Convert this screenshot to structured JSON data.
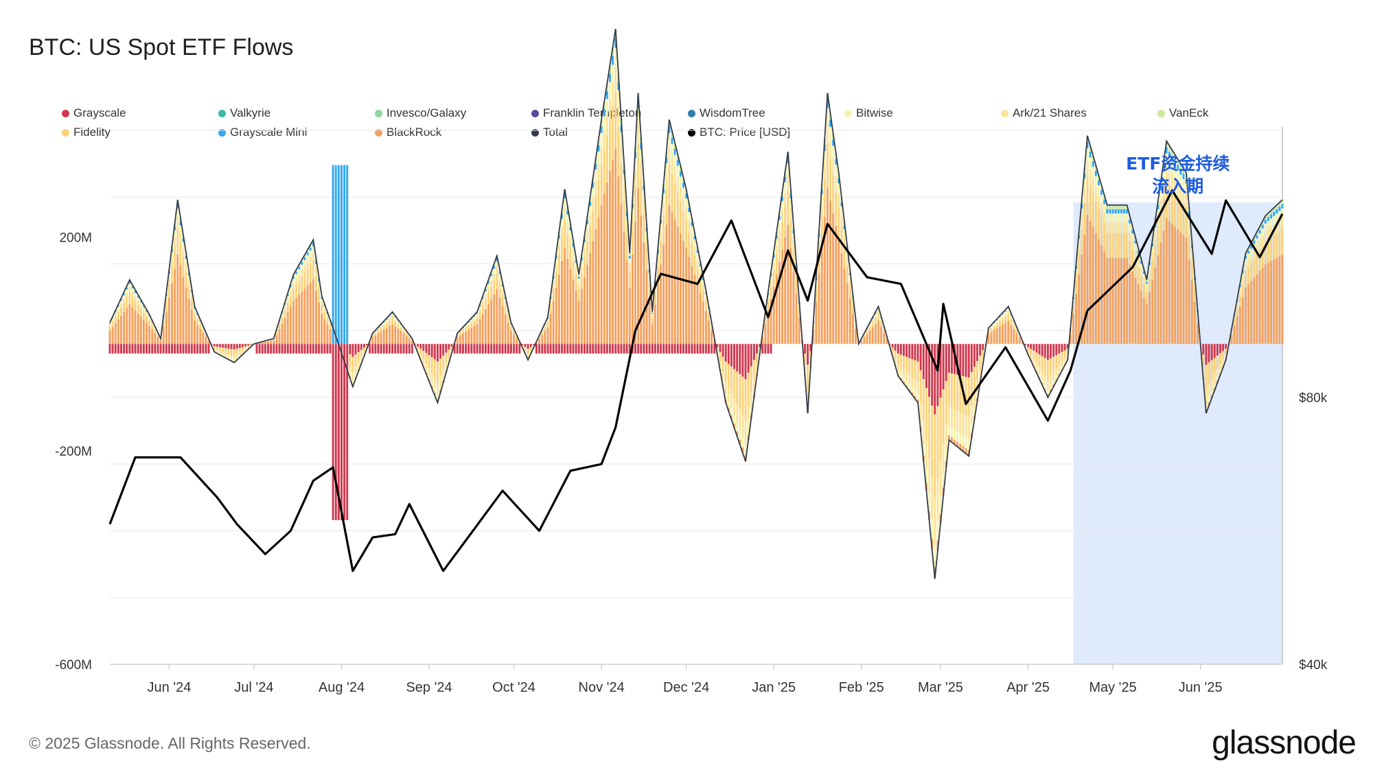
{
  "title": "BTC: US Spot ETF Flows",
  "footer": "© 2025 Glassnode. All Rights Reserved.",
  "brand": "glassnode",
  "legend": [
    {
      "name": "Grayscale",
      "color": "#d0384e"
    },
    {
      "name": "Valkyrie",
      "color": "#3fb8a6"
    },
    {
      "name": "Invesco/Galaxy",
      "color": "#8fd6a0"
    },
    {
      "name": "Franklin Templeton",
      "color": "#5b4a9e"
    },
    {
      "name": "WisdomTree",
      "color": "#2f7fb0"
    },
    {
      "name": "Bitwise",
      "color": "#f4f5b0"
    },
    {
      "name": "Ark/21 Shares",
      "color": "#fbe39a"
    },
    {
      "name": "VanEck",
      "color": "#c9e89a"
    },
    {
      "name": "Fidelity",
      "color": "#fbd27a"
    },
    {
      "name": "Grayscale Mini",
      "color": "#33a8f0"
    },
    {
      "name": "BlackRock",
      "color": "#f4a05c"
    },
    {
      "name": "Total",
      "color": "#333a48"
    },
    {
      "name": "BTC: Price [USD]",
      "color": "#000000"
    }
  ],
  "annotation": {
    "line1": "ETF资金持续",
    "line2": "流入期",
    "color": "#1f5de0",
    "band_color": "#dfeafd"
  },
  "chart_data": {
    "type": "bar",
    "xlabels": [
      "Jun '24",
      "Jul '24",
      "Aug '24",
      "Sep '24",
      "Oct '24",
      "Nov '24",
      "Dec '24",
      "Jan '25",
      "Feb '25",
      "Mar '25",
      "Apr '25",
      "May '25",
      "Jun '25"
    ],
    "x_range": [
      "2024-05-11",
      "2025-06-30"
    ],
    "highlight_range": [
      "2025-04-17",
      "2025-06-30"
    ],
    "y_left": {
      "range": [
        -600,
        400
      ],
      "unit": "M",
      "ticks": [
        {
          "value": 200,
          "label": "200M"
        },
        {
          "value": -200,
          "label": "-200M"
        },
        {
          "value": -600,
          "label": "-600M"
        }
      ]
    },
    "y_right": {
      "range": [
        40000,
        120000
      ],
      "ticks": [
        {
          "value": 80000,
          "label": "$80k"
        },
        {
          "value": 40000,
          "label": "$40k"
        }
      ]
    },
    "flow_series": [
      "Grayscale",
      "Valkyrie",
      "Invesco/Galaxy",
      "Franklin Templeton",
      "WisdomTree",
      "Bitwise",
      "Ark/21 Shares",
      "VanEck",
      "Fidelity",
      "Grayscale Mini",
      "BlackRock"
    ],
    "total_flow": [
      {
        "date": "2024-05-11",
        "value": 40
      },
      {
        "date": "2024-05-18",
        "value": 120
      },
      {
        "date": "2024-05-25",
        "value": 55
      },
      {
        "date": "2024-05-29",
        "value": 10
      },
      {
        "date": "2024-06-04",
        "value": 270
      },
      {
        "date": "2024-06-10",
        "value": 70
      },
      {
        "date": "2024-06-17",
        "value": -15
      },
      {
        "date": "2024-06-24",
        "value": -35
      },
      {
        "date": "2024-07-01",
        "value": 0
      },
      {
        "date": "2024-07-08",
        "value": 10
      },
      {
        "date": "2024-07-15",
        "value": 130
      },
      {
        "date": "2024-07-22",
        "value": 195
      },
      {
        "date": "2024-07-25",
        "value": 90
      },
      {
        "date": "2024-07-29",
        "value": 30
      },
      {
        "date": "2024-08-05",
        "value": -80
      },
      {
        "date": "2024-08-12",
        "value": 20
      },
      {
        "date": "2024-08-19",
        "value": 60
      },
      {
        "date": "2024-08-26",
        "value": 10
      },
      {
        "date": "2024-09-04",
        "value": -110
      },
      {
        "date": "2024-09-11",
        "value": 20
      },
      {
        "date": "2024-09-18",
        "value": 60
      },
      {
        "date": "2024-09-25",
        "value": 165
      },
      {
        "date": "2024-09-30",
        "value": 40
      },
      {
        "date": "2024-10-06",
        "value": -30
      },
      {
        "date": "2024-10-13",
        "value": 50
      },
      {
        "date": "2024-10-19",
        "value": 290
      },
      {
        "date": "2024-10-24",
        "value": 130
      },
      {
        "date": "2024-11-01",
        "value": 420
      },
      {
        "date": "2024-11-06",
        "value": 590
      },
      {
        "date": "2024-11-11",
        "value": 170
      },
      {
        "date": "2024-11-14",
        "value": 470
      },
      {
        "date": "2024-11-19",
        "value": 60
      },
      {
        "date": "2024-11-25",
        "value": 420
      },
      {
        "date": "2024-12-01",
        "value": 290
      },
      {
        "date": "2024-12-08",
        "value": 100
      },
      {
        "date": "2024-12-15",
        "value": -110
      },
      {
        "date": "2024-12-22",
        "value": -220
      },
      {
        "date": "2024-12-29",
        "value": 60
      },
      {
        "date": "2025-01-06",
        "value": 360
      },
      {
        "date": "2025-01-13",
        "value": -130
      },
      {
        "date": "2025-01-20",
        "value": 470
      },
      {
        "date": "2025-01-24",
        "value": 320
      },
      {
        "date": "2025-01-31",
        "value": 0
      },
      {
        "date": "2025-02-07",
        "value": 70
      },
      {
        "date": "2025-02-14",
        "value": -60
      },
      {
        "date": "2025-02-21",
        "value": -110
      },
      {
        "date": "2025-02-27",
        "value": -440
      },
      {
        "date": "2025-03-04",
        "value": -180
      },
      {
        "date": "2025-03-11",
        "value": -210
      },
      {
        "date": "2025-03-18",
        "value": 30
      },
      {
        "date": "2025-03-25",
        "value": 70
      },
      {
        "date": "2025-04-01",
        "value": -20
      },
      {
        "date": "2025-04-08",
        "value": -100
      },
      {
        "date": "2025-04-15",
        "value": -30
      },
      {
        "date": "2025-04-22",
        "value": 390
      },
      {
        "date": "2025-04-29",
        "value": 260
      },
      {
        "date": "2025-05-06",
        "value": 260
      },
      {
        "date": "2025-05-13",
        "value": 120
      },
      {
        "date": "2025-05-20",
        "value": 380
      },
      {
        "date": "2025-05-27",
        "value": 320
      },
      {
        "date": "2025-06-03",
        "value": -130
      },
      {
        "date": "2025-06-10",
        "value": -30
      },
      {
        "date": "2025-06-17",
        "value": 170
      },
      {
        "date": "2025-06-24",
        "value": 240
      },
      {
        "date": "2025-06-30",
        "value": 270
      }
    ],
    "btc_price": [
      {
        "date": "2024-05-11",
        "value": 61000
      },
      {
        "date": "2024-05-20",
        "value": 71000
      },
      {
        "date": "2024-06-05",
        "value": 71000
      },
      {
        "date": "2024-06-18",
        "value": 65000
      },
      {
        "date": "2024-06-25",
        "value": 61000
      },
      {
        "date": "2024-07-05",
        "value": 56500
      },
      {
        "date": "2024-07-14",
        "value": 60000
      },
      {
        "date": "2024-07-22",
        "value": 67500
      },
      {
        "date": "2024-07-29",
        "value": 69500
      },
      {
        "date": "2024-08-05",
        "value": 54000
      },
      {
        "date": "2024-08-12",
        "value": 59000
      },
      {
        "date": "2024-08-20",
        "value": 59500
      },
      {
        "date": "2024-08-25",
        "value": 64000
      },
      {
        "date": "2024-09-06",
        "value": 54000
      },
      {
        "date": "2024-09-13",
        "value": 58000
      },
      {
        "date": "2024-09-27",
        "value": 66000
      },
      {
        "date": "2024-10-10",
        "value": 60000
      },
      {
        "date": "2024-10-21",
        "value": 69000
      },
      {
        "date": "2024-11-01",
        "value": 70000
      },
      {
        "date": "2024-11-06",
        "value": 75500
      },
      {
        "date": "2024-11-13",
        "value": 90000
      },
      {
        "date": "2024-11-22",
        "value": 98500
      },
      {
        "date": "2024-12-05",
        "value": 97000
      },
      {
        "date": "2024-12-17",
        "value": 106500
      },
      {
        "date": "2024-12-30",
        "value": 92000
      },
      {
        "date": "2025-01-06",
        "value": 102000
      },
      {
        "date": "2025-01-13",
        "value": 94500
      },
      {
        "date": "2025-01-20",
        "value": 106000
      },
      {
        "date": "2025-02-03",
        "value": 98000
      },
      {
        "date": "2025-02-15",
        "value": 97000
      },
      {
        "date": "2025-02-28",
        "value": 84000
      },
      {
        "date": "2025-03-02",
        "value": 94000
      },
      {
        "date": "2025-03-10",
        "value": 79000
      },
      {
        "date": "2025-03-24",
        "value": 87500
      },
      {
        "date": "2025-04-08",
        "value": 76500
      },
      {
        "date": "2025-04-16",
        "value": 84000
      },
      {
        "date": "2025-04-22",
        "value": 93000
      },
      {
        "date": "2025-05-08",
        "value": 99500
      },
      {
        "date": "2025-05-22",
        "value": 111000
      },
      {
        "date": "2025-06-05",
        "value": 101500
      },
      {
        "date": "2025-06-10",
        "value": 109500
      },
      {
        "date": "2025-06-22",
        "value": 101000
      },
      {
        "date": "2025-06-30",
        "value": 107500
      }
    ]
  }
}
